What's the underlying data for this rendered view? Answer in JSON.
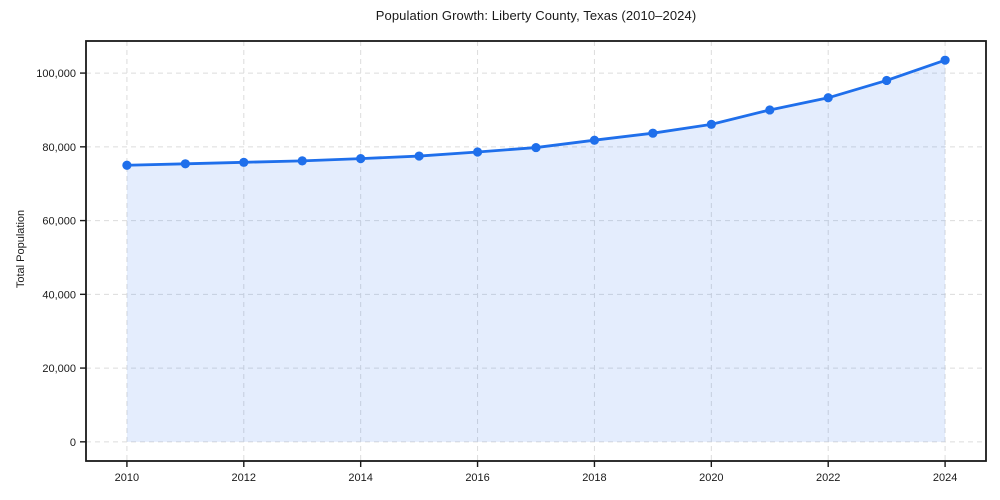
{
  "chart_data": {
    "type": "area",
    "title": "Population Growth: Liberty County, Texas (2010–2024)",
    "xlabel": "",
    "ylabel": "Total Population",
    "series_name": "Total Population",
    "x": [
      2010,
      2011,
      2012,
      2013,
      2014,
      2015,
      2016,
      2017,
      2018,
      2019,
      2020,
      2021,
      2022,
      2023,
      2024
    ],
    "values": [
      75000,
      75400,
      75800,
      76200,
      76800,
      77500,
      78600,
      79800,
      81800,
      83700,
      86100,
      90000,
      93300,
      98000,
      103500
    ],
    "xticks": [
      2010,
      2012,
      2014,
      2016,
      2018,
      2020,
      2022,
      2024
    ],
    "yticks": [
      0,
      20000,
      40000,
      60000,
      80000,
      100000
    ],
    "ytick_labels": [
      "0",
      "20,000",
      "40,000",
      "60,000",
      "80,000",
      "100,000"
    ],
    "xlim": [
      2009.3,
      2024.7
    ],
    "ylim": [
      -5200,
      108700
    ],
    "grid": true,
    "grid_style": "dashed",
    "legend": "none",
    "fill_to_zero": true,
    "marker": "circle",
    "colors": {
      "line": "#1f6feb",
      "fill": "#1f6feb",
      "fill_opacity": 0.12,
      "grid": "#dcdcdc",
      "spine": "#1a1a1a",
      "text": "#1a1a1a",
      "background": "#ffffff"
    }
  }
}
